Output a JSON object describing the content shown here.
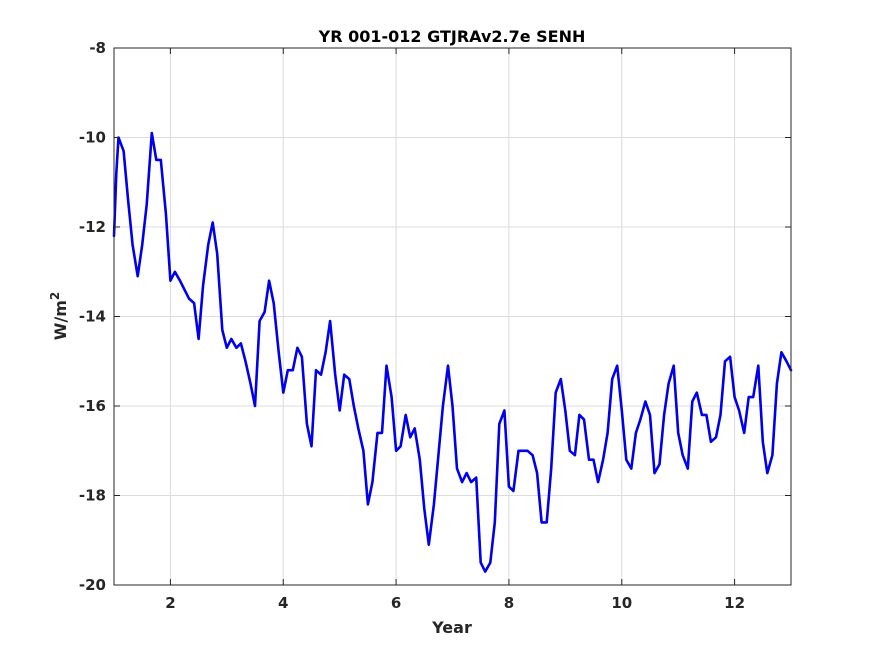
{
  "chart_data": {
    "type": "line",
    "title": "YR 001-012 GTJRAv2.7e SENH",
    "xlabel": "Year",
    "ylabel": "W/m",
    "ylabel_superscript": "2",
    "xlim": [
      1,
      13
    ],
    "ylim": [
      -20,
      -8
    ],
    "xticks": [
      2,
      4,
      6,
      8,
      10,
      12
    ],
    "xtick_labels": [
      "2",
      "4",
      "6",
      "8",
      "10",
      "12"
    ],
    "yticks": [
      -20,
      -18,
      -16,
      -14,
      -12,
      -10,
      -8
    ],
    "ytick_labels": [
      "-20",
      "-18",
      "-16",
      "-14",
      "-12",
      "-10",
      "-8"
    ],
    "grid": true,
    "line_color": "#0000ee",
    "series": [
      {
        "x": [
          1.0,
          1.04,
          1.08,
          1.17,
          1.25,
          1.33,
          1.42,
          1.5,
          1.58,
          1.67,
          1.75,
          1.83,
          1.92,
          2.0,
          2.08,
          2.17,
          2.25,
          2.33,
          2.42,
          2.5,
          2.58,
          2.67,
          2.75,
          2.83,
          2.92,
          3.0,
          3.08,
          3.17,
          3.25,
          3.33,
          3.42,
          3.5,
          3.58,
          3.67,
          3.75,
          3.83,
          3.92,
          4.0,
          4.08,
          4.17,
          4.25,
          4.33,
          4.42,
          4.5,
          4.58,
          4.67,
          4.75,
          4.83,
          4.92,
          5.0,
          5.08,
          5.17,
          5.25,
          5.33,
          5.42,
          5.5,
          5.58,
          5.67,
          5.75,
          5.83,
          5.92,
          6.0,
          6.08,
          6.17,
          6.25,
          6.33,
          6.42,
          6.5,
          6.58,
          6.67,
          6.75,
          6.83,
          6.92,
          7.0,
          7.08,
          7.17,
          7.25,
          7.33,
          7.42,
          7.5,
          7.58,
          7.67,
          7.75,
          7.83,
          7.92,
          8.0,
          8.08,
          8.17,
          8.25,
          8.33,
          8.42,
          8.5,
          8.58,
          8.67,
          8.75,
          8.83,
          8.92,
          9.0,
          9.08,
          9.17,
          9.25,
          9.33,
          9.42,
          9.5,
          9.58,
          9.67,
          9.75,
          9.83,
          9.92,
          10.0,
          10.08,
          10.17,
          10.25,
          10.33,
          10.42,
          10.5,
          10.58,
          10.67,
          10.75,
          10.83,
          10.92,
          11.0,
          11.08,
          11.17,
          11.25,
          11.33,
          11.42,
          11.5,
          11.58,
          11.67,
          11.75,
          11.83,
          11.92,
          12.0,
          12.08,
          12.17,
          12.25,
          12.33,
          12.42,
          12.5,
          12.58,
          12.67,
          12.75,
          12.83,
          12.92,
          13.0
        ],
        "y": [
          -12.2,
          -10.8,
          -10.0,
          -10.3,
          -11.4,
          -12.4,
          -13.1,
          -12.4,
          -11.5,
          -9.9,
          -10.5,
          -10.5,
          -11.7,
          -13.2,
          -13.0,
          -13.2,
          -13.4,
          -13.6,
          -13.7,
          -14.5,
          -13.3,
          -12.4,
          -11.9,
          -12.6,
          -14.3,
          -14.7,
          -14.5,
          -14.7,
          -14.6,
          -15.0,
          -15.5,
          -16.0,
          -14.1,
          -13.9,
          -13.2,
          -13.7,
          -14.8,
          -15.7,
          -15.2,
          -15.2,
          -14.7,
          -14.9,
          -16.4,
          -16.9,
          -15.2,
          -15.3,
          -14.8,
          -14.1,
          -15.3,
          -16.1,
          -15.3,
          -15.4,
          -16.0,
          -16.5,
          -17.0,
          -18.2,
          -17.7,
          -16.6,
          -16.6,
          -15.1,
          -15.8,
          -17.0,
          -16.9,
          -16.2,
          -16.7,
          -16.5,
          -17.2,
          -18.3,
          -19.1,
          -18.2,
          -17.1,
          -16.0,
          -15.1,
          -16.0,
          -17.4,
          -17.7,
          -17.5,
          -17.7,
          -17.6,
          -19.5,
          -19.7,
          -19.5,
          -18.6,
          -16.4,
          -16.1,
          -17.8,
          -17.9,
          -17.0,
          -17.0,
          -17.0,
          -17.1,
          -17.5,
          -18.6,
          -18.6,
          -17.4,
          -15.7,
          -15.4,
          -16.1,
          -17.0,
          -17.1,
          -16.2,
          -16.3,
          -17.2,
          -17.2,
          -17.7,
          -17.2,
          -16.6,
          -15.4,
          -15.1,
          -16.1,
          -17.2,
          -17.4,
          -16.6,
          -16.3,
          -15.9,
          -16.2,
          -17.5,
          -17.3,
          -16.2,
          -15.5,
          -15.1,
          -16.6,
          -17.1,
          -17.4,
          -15.9,
          -15.7,
          -16.2,
          -16.2,
          -16.8,
          -16.7,
          -16.2,
          -15.0,
          -14.9,
          -15.8,
          -16.1,
          -16.6,
          -15.8,
          -15.8,
          -15.1,
          -16.8,
          -17.5,
          -17.1,
          -15.5,
          -14.8,
          -15.0,
          -15.2
        ]
      }
    ]
  }
}
